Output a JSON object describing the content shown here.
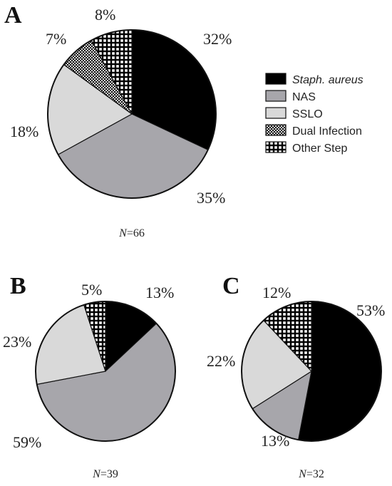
{
  "chart_data": [
    {
      "type": "pie",
      "panel": "A",
      "n_label": "=66",
      "n_var": "N",
      "slices": [
        {
          "category": "Staph. aureus",
          "value": 32,
          "label": "32%"
        },
        {
          "category": "NAS",
          "value": 35,
          "label": "35%"
        },
        {
          "category": "SSLO",
          "value": 18,
          "label": "18%"
        },
        {
          "category": "Dual Infection",
          "value": 7,
          "label": "7%"
        },
        {
          "category": "Other Step",
          "value": 8,
          "label": "8%"
        }
      ]
    },
    {
      "type": "pie",
      "panel": "B",
      "n_label": "=39",
      "n_var": "N",
      "slices": [
        {
          "category": "Staph. aureus",
          "value": 13,
          "label": "13%"
        },
        {
          "category": "NAS",
          "value": 59,
          "label": "59%"
        },
        {
          "category": "SSLO",
          "value": 23,
          "label": "23%"
        },
        {
          "category": "Other Step",
          "value": 5,
          "label": "5%"
        }
      ]
    },
    {
      "type": "pie",
      "panel": "C",
      "n_label": "=32",
      "n_var": "N",
      "slices": [
        {
          "category": "Staph. aureus",
          "value": 53,
          "label": "53%"
        },
        {
          "category": "NAS",
          "value": 13,
          "label": "13%"
        },
        {
          "category": "SSLO",
          "value": 22,
          "label": "22%"
        },
        {
          "category": "Other Step",
          "value": 12,
          "label": "12%"
        }
      ]
    }
  ],
  "legend": [
    {
      "label": "Staph. aureus",
      "italic": true,
      "pattern": "solid-black"
    },
    {
      "label": "NAS",
      "italic": false,
      "pattern": "solid-gray"
    },
    {
      "label": "SSLO",
      "italic": false,
      "pattern": "solid-lightgray"
    },
    {
      "label": "Dual Infection",
      "italic": false,
      "pattern": "crosshatch"
    },
    {
      "label": "Other Step",
      "italic": false,
      "pattern": "white-grid"
    }
  ],
  "colors": {
    "Staph. aureus": "#000000",
    "NAS": "#a7a6ab",
    "SSLO": "#d9d9d9",
    "outline": "#111111"
  }
}
